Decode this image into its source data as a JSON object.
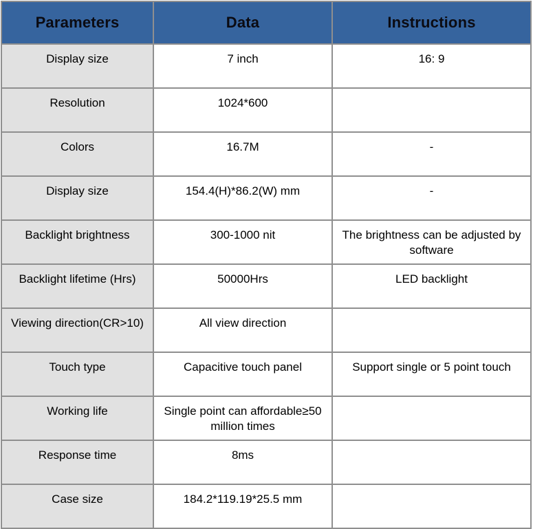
{
  "table": {
    "columns": [
      {
        "label": "Parameters"
      },
      {
        "label": "Data"
      },
      {
        "label": "Instructions"
      }
    ],
    "rows": [
      {
        "parameter": "Display size",
        "data": "7 inch",
        "instructions": "16: 9"
      },
      {
        "parameter": "Resolution",
        "data": "1024*600",
        "instructions": ""
      },
      {
        "parameter": "Colors",
        "data": "16.7M",
        "instructions": "-"
      },
      {
        "parameter": "Display size",
        "data": "154.4(H)*86.2(W) mm",
        "instructions": "-"
      },
      {
        "parameter": "Backlight brightness",
        "data": "300-1000 nit",
        "instructions": "The brightness can be adjusted by software"
      },
      {
        "parameter": "Backlight lifetime (Hrs)",
        "data": "50000Hrs",
        "instructions": "LED backlight"
      },
      {
        "parameter": "Viewing direction(CR>10)",
        "data": "All view direction",
        "instructions": ""
      },
      {
        "parameter": "Touch type",
        "data": "Capacitive touch panel",
        "instructions": "Support single or 5 point touch"
      },
      {
        "parameter": "Working life",
        "data": "Single point can affordable≥50 million times",
        "instructions": ""
      },
      {
        "parameter": "Response time",
        "data": "8ms",
        "instructions": ""
      },
      {
        "parameter": "Case size",
        "data": "184.2*119.19*25.5 mm",
        "instructions": ""
      }
    ],
    "colors": {
      "header_bg": "#36649e",
      "header_text": "#0b0b12",
      "parameter_column_bg": "#e1e1e1",
      "data_column_bg": "#ffffff",
      "grid_border": "#8f8f8f",
      "body_text": "#000000"
    }
  }
}
